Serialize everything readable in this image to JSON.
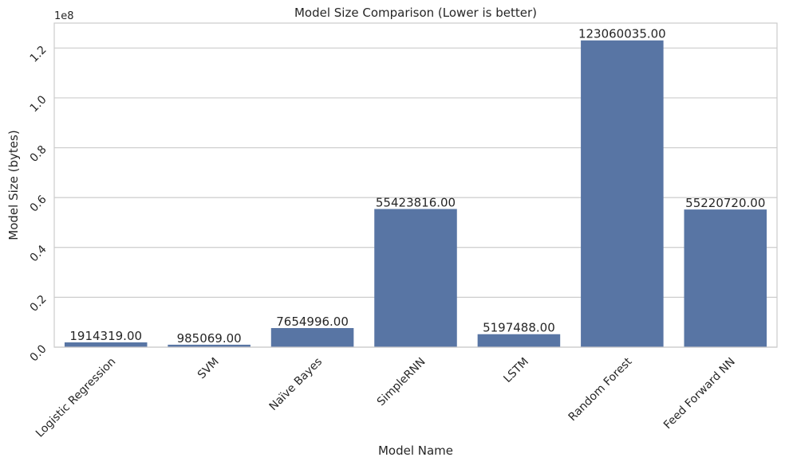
{
  "chart_data": {
    "type": "bar",
    "title": "Model Size Comparison (Lower is better)",
    "xlabel": "Model Name",
    "ylabel": "Model Size (bytes)",
    "y_offset_label": "1e8",
    "categories": [
      "Logistic Regression",
      "SVM",
      "Naïve Bayes",
      "SimpleRNN",
      "LSTM",
      "Random Forest",
      "Feed Forward NN"
    ],
    "values": [
      1914319,
      985069,
      7654996,
      55423816,
      5197488,
      123060035,
      55220720
    ],
    "data_labels": [
      "1914319.00",
      "985069.00",
      "7654996.00",
      "55423816.00",
      "5197488.00",
      "123060035.00",
      "55220720.00"
    ],
    "ylim": [
      0,
      130000000
    ],
    "y_ticks": [
      0,
      20000000,
      40000000,
      60000000,
      80000000,
      100000000,
      120000000
    ],
    "y_tick_labels": [
      "0.0",
      "0.2",
      "0.4",
      "0.6",
      "0.8",
      "1.0",
      "1.2"
    ],
    "grid": "horizontal",
    "bar_color": "#5875a4",
    "grid_color": "#cccccc"
  }
}
